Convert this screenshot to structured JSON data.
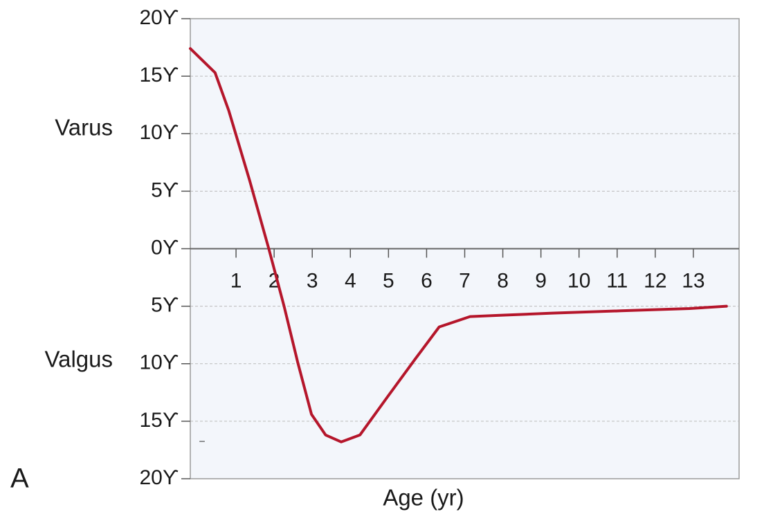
{
  "chart_data": {
    "type": "line",
    "x_label": "Age (yr)",
    "upper_label": "Varus",
    "lower_label": "Valgus",
    "panel_label": "A",
    "stray_mark": "–",
    "x": [
      -0.2,
      0.45,
      0.81,
      1.36,
      1.86,
      2.26,
      2.62,
      2.98,
      3.35,
      3.76,
      4.25,
      4.97,
      5.7,
      6.33,
      7.14,
      7.87,
      9.3,
      11.1,
      12.9,
      13.87
    ],
    "values": [
      17.4,
      15.3,
      12,
      5.9,
      0,
      -5,
      -9.9,
      -14.4,
      -16.2,
      -16.8,
      -16.2,
      -12.9,
      -9.6,
      -6.8,
      -5.9,
      -5.8,
      -5.6,
      -5.4,
      -5.2,
      -5.0
    ],
    "color": "#b5162b",
    "xlim": [
      -0.2,
      14.2
    ],
    "xticks": [
      1,
      2,
      3,
      4,
      5,
      6,
      7,
      8,
      9,
      10,
      11,
      12,
      13
    ],
    "ylim": [
      -20,
      20
    ],
    "yticks": [
      {
        "value": 20,
        "label": "20ϒ"
      },
      {
        "value": 15,
        "label": "15ϒ"
      },
      {
        "value": 10,
        "label": "10ϒ"
      },
      {
        "value": 5,
        "label": "5ϒ"
      },
      {
        "value": 0,
        "label": "0ϒ"
      },
      {
        "value": -5,
        "label": "5ϒ"
      },
      {
        "value": -10,
        "label": "10ϒ"
      },
      {
        "value": -15,
        "label": "15ϒ"
      },
      {
        "value": -20,
        "label": "20ϒ"
      }
    ],
    "grid": true
  }
}
